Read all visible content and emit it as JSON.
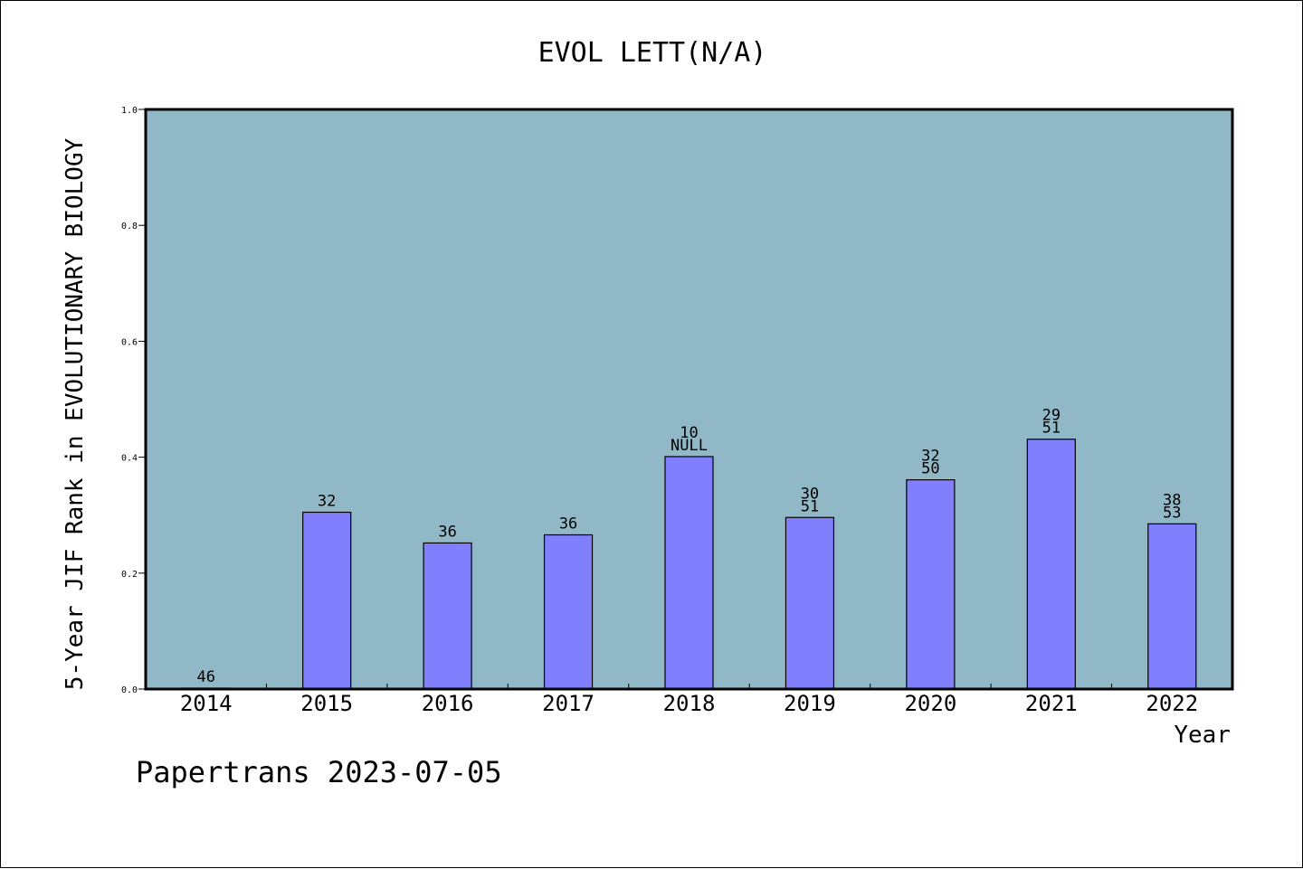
{
  "chart_data": {
    "type": "bar",
    "title": "EVOL LETT(N/A)",
    "xlabel": "Year",
    "ylabel": "5-Year JIF Rank in EVOLUTIONARY BIOLOGY",
    "categories": [
      "2014",
      "2015",
      "2016",
      "2017",
      "2018",
      "2019",
      "2020",
      "2021",
      "2022"
    ],
    "values": [
      0.0,
      0.305,
      0.252,
      0.266,
      0.401,
      0.296,
      0.361,
      0.431,
      0.285
    ],
    "bar_labels": [
      [
        "46"
      ],
      [
        "32"
      ],
      [
        "36"
      ],
      [
        "36"
      ],
      [
        "10",
        "NULL"
      ],
      [
        "30",
        "51"
      ],
      [
        "32",
        "50"
      ],
      [
        "29",
        "51"
      ],
      [
        "38",
        "53"
      ]
    ],
    "ylim": [
      0,
      1
    ],
    "yticks": [
      "0.0",
      "0.2",
      "0.4",
      "0.6",
      "0.8",
      "1.0"
    ],
    "grid": false,
    "colors": {
      "plot_background": "#90b8c6",
      "bar_fill": "#8080ff",
      "bar_stroke": "#000000",
      "axis": "#000000"
    }
  },
  "footer": {
    "text": "Papertrans 2023-07-05"
  }
}
